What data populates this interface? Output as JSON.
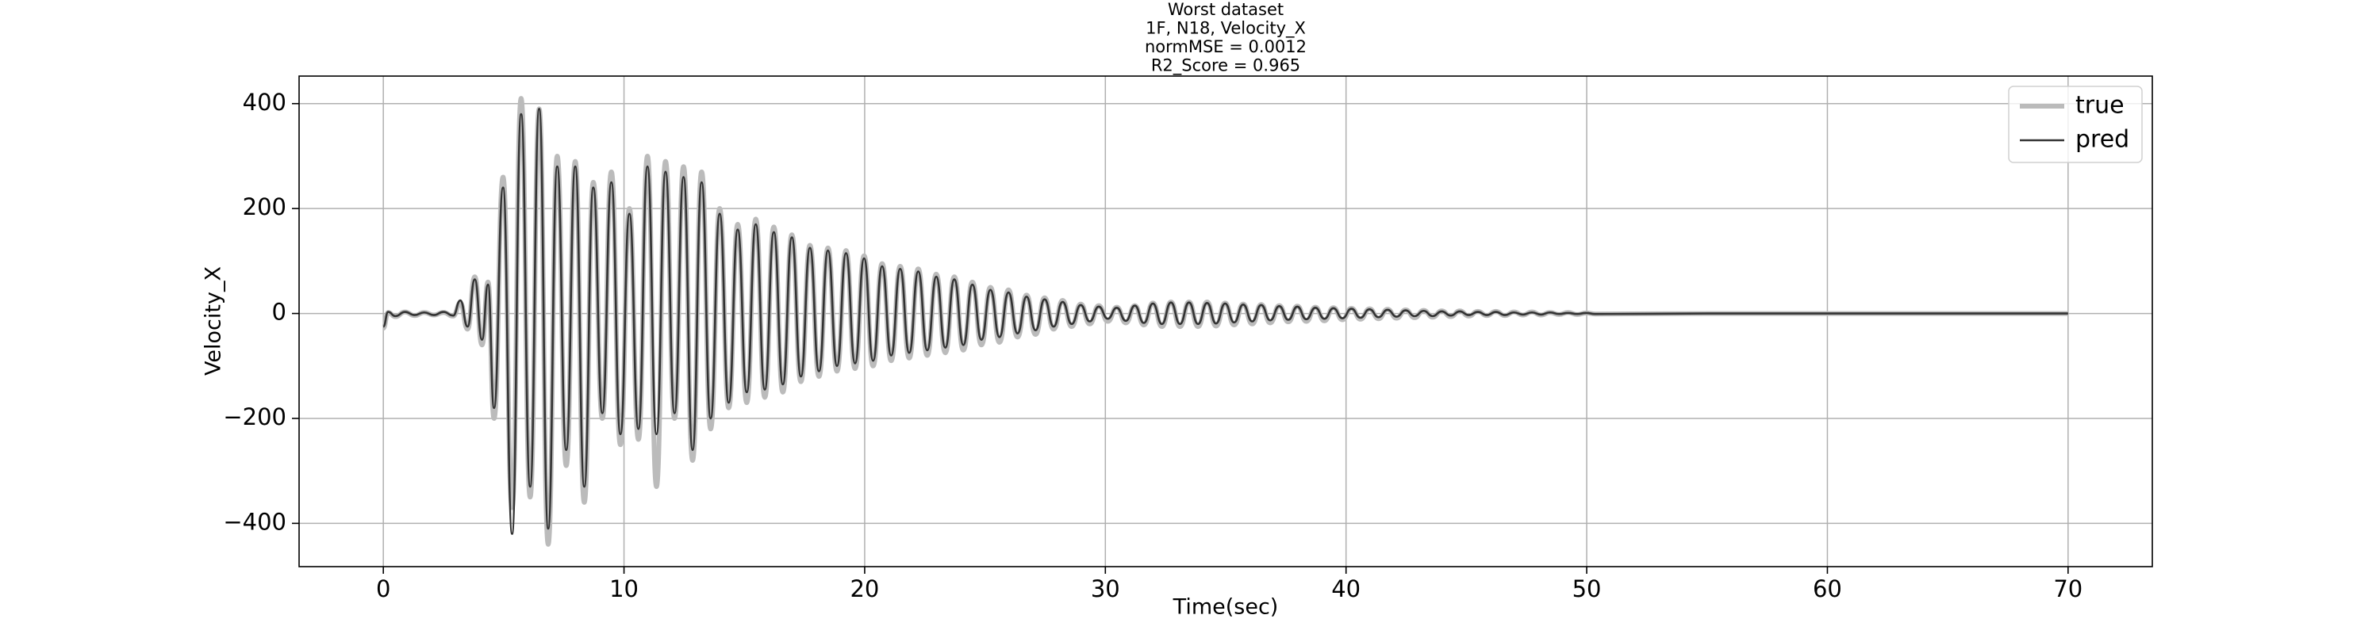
{
  "chart_data": {
    "type": "line",
    "title": [
      "Worst dataset",
      "1F, N18, Velocity_X",
      "normMSE = 0.0012",
      " R2_Score = 0.965"
    ],
    "x_label": "Time(sec)",
    "y_label": "Velocity_X",
    "xlim": [
      -3.5,
      73.5
    ],
    "ylim": [
      -482.5,
      452.5
    ],
    "xticks": [
      0,
      10,
      20,
      30,
      40,
      50,
      60,
      70
    ],
    "yticks": [
      {
        "value": -400,
        "label": "−400"
      },
      {
        "value": -200,
        "label": "−200"
      },
      0,
      200,
      400
    ],
    "grid": true,
    "legend": "upper right",
    "x": [
      0,
      0.2,
      0.5,
      0.9,
      1.3,
      1.7,
      2.1,
      2.5,
      2.9,
      3.2,
      3.5,
      3.8,
      4.1,
      4.35,
      4.6,
      4.975,
      5.35,
      5.725,
      6.1,
      6.475,
      6.85,
      7.225,
      7.6,
      7.975,
      8.35,
      8.725,
      9.1,
      9.475,
      9.85,
      10.225,
      10.6,
      10.975,
      11.35,
      11.725,
      12.1,
      12.475,
      12.85,
      13.225,
      13.6,
      13.975,
      14.35,
      14.725,
      15.1,
      15.475,
      15.85,
      16.225,
      16.6,
      16.975,
      17.35,
      17.725,
      18.1,
      18.475,
      18.85,
      19.225,
      19.6,
      19.975,
      20.35,
      20.725,
      21.1,
      21.475,
      21.85,
      22.225,
      22.6,
      22.975,
      23.35,
      23.725,
      24.1,
      24.475,
      24.85,
      25.225,
      25.6,
      25.975,
      26.35,
      26.725,
      27.1,
      27.475,
      27.85,
      28.225,
      28.6,
      28.975,
      29.35,
      29.725,
      30.1,
      30.475,
      30.85,
      31.225,
      31.6,
      31.975,
      32.35,
      32.725,
      33.1,
      33.475,
      33.85,
      34.225,
      34.6,
      34.975,
      35.35,
      35.725,
      36.1,
      36.475,
      36.85,
      37.225,
      37.6,
      37.975,
      38.35,
      38.725,
      39.1,
      39.475,
      39.85,
      40.225,
      40.6,
      40.975,
      41.35,
      41.725,
      42.1,
      42.475,
      42.85,
      43.225,
      43.6,
      43.975,
      44.35,
      44.725,
      45.1,
      45.475,
      45.85,
      46.225,
      46.6,
      46.975,
      47.35,
      47.725,
      48.1,
      48.475,
      48.85,
      49.225,
      49.6,
      49.975,
      50.35,
      55,
      60,
      65,
      70
    ],
    "series": [
      {
        "name": "true",
        "color": "#bbbbbb",
        "values": [
          -28,
          2,
          -6,
          3,
          -4,
          2,
          -3,
          2,
          -5,
          20,
          -30,
          70,
          -60,
          60,
          -200,
          260,
          -370,
          410,
          -350,
          390,
          -440,
          300,
          -290,
          290,
          -360,
          250,
          -200,
          270,
          -250,
          200,
          -240,
          300,
          -330,
          290,
          -200,
          280,
          -280,
          270,
          -220,
          200,
          -180,
          170,
          -170,
          180,
          -160,
          165,
          -150,
          150,
          -130,
          130,
          -120,
          125,
          -110,
          120,
          -105,
          110,
          -100,
          95,
          -90,
          90,
          -85,
          85,
          -80,
          75,
          -75,
          70,
          -70,
          60,
          -60,
          50,
          -55,
          45,
          -45,
          35,
          -40,
          30,
          -30,
          25,
          -25,
          18,
          -20,
          15,
          -15,
          12,
          -18,
          15,
          -22,
          20,
          -25,
          22,
          -25,
          22,
          -25,
          22,
          -24,
          20,
          -22,
          18,
          -20,
          17,
          -18,
          15,
          -16,
          14,
          -15,
          12,
          -14,
          11,
          -12,
          10,
          -11,
          9,
          -10,
          8,
          -9,
          7,
          -8,
          6,
          -7,
          5,
          -6,
          5,
          -5,
          4,
          -4,
          4,
          -4,
          3,
          -3,
          3,
          -3,
          2,
          -2,
          2,
          -2,
          1,
          -1,
          0,
          0,
          0,
          0
        ]
      },
      {
        "name": "pred",
        "color": "#333333",
        "values": [
          -25,
          3,
          -5,
          3,
          -3,
          2,
          -3,
          3,
          -4,
          25,
          -25,
          65,
          -50,
          55,
          -180,
          240,
          -420,
          380,
          -330,
          390,
          -410,
          280,
          -260,
          280,
          -330,
          240,
          -190,
          250,
          -230,
          190,
          -220,
          280,
          -230,
          270,
          -190,
          260,
          -260,
          250,
          -200,
          190,
          -170,
          160,
          -150,
          170,
          -145,
          155,
          -135,
          145,
          -120,
          125,
          -110,
          120,
          -100,
          115,
          -95,
          105,
          -90,
          90,
          -80,
          85,
          -75,
          80,
          -70,
          70,
          -65,
          65,
          -60,
          55,
          -50,
          45,
          -45,
          40,
          -38,
          32,
          -32,
          27,
          -25,
          22,
          -20,
          16,
          -15,
          13,
          -10,
          11,
          -14,
          15,
          -18,
          19,
          -20,
          21,
          -20,
          21,
          -20,
          20,
          -19,
          19,
          -17,
          17,
          -15,
          16,
          -13,
          14,
          -12,
          13,
          -11,
          11,
          -10,
          10,
          -9,
          9,
          -8,
          8,
          -7,
          7,
          -6,
          6,
          -5,
          5,
          -5,
          4,
          -4,
          4,
          -3,
          3,
          -3,
          3,
          -3,
          2,
          -2,
          2,
          -2,
          2,
          -1,
          1,
          -1,
          1,
          -1,
          0,
          0,
          0,
          0
        ]
      }
    ]
  }
}
